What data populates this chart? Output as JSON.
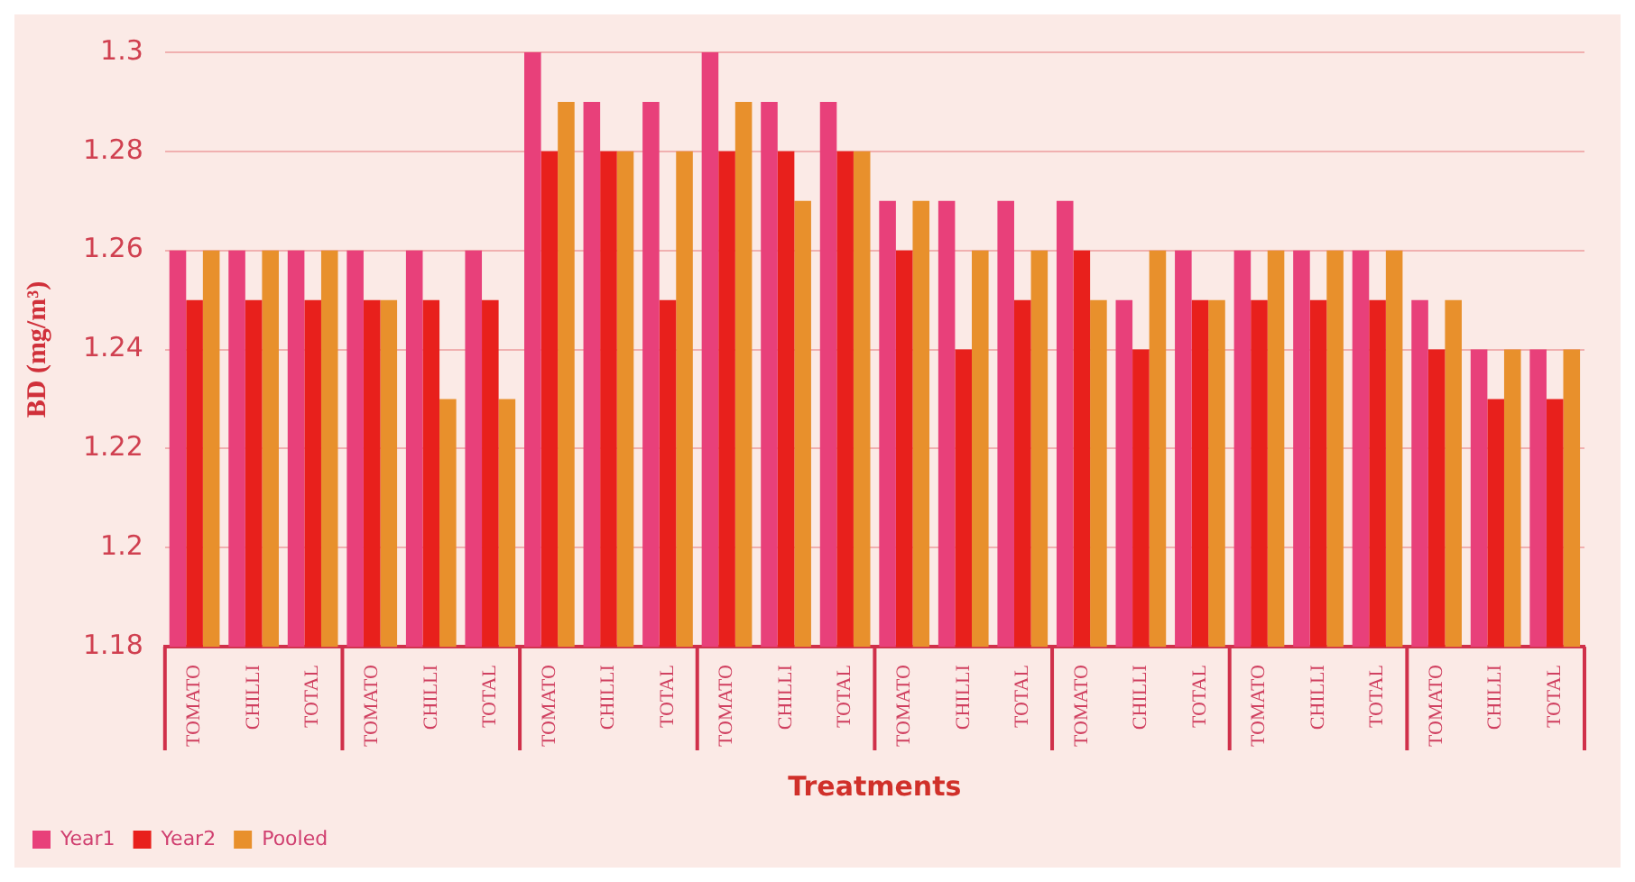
{
  "chart_data": {
    "type": "bar",
    "xlabel": "Treatments",
    "ylabel": "BD (mg/m³)",
    "categories": [
      "TOMATO",
      "CHILLI",
      "TOTAL",
      "TOMATO",
      "CHILLI",
      "TOTAL",
      "TOMATO",
      "CHILLI",
      "TOTAL",
      "TOMATO",
      "CHILLI",
      "TOTAL",
      "TOMATO",
      "CHILLI",
      "TOTAL",
      "TOMATO",
      "CHILLI",
      "TOTAL",
      "TOMATO",
      "CHILLI",
      "TOTAL",
      "TOMATO",
      "CHILLI",
      "TOTAL"
    ],
    "series": [
      {
        "name": "Year1",
        "color": "#e8407a",
        "values": [
          1.26,
          1.26,
          1.26,
          1.26,
          1.26,
          1.26,
          1.3,
          1.29,
          1.29,
          1.3,
          1.29,
          1.29,
          1.27,
          1.27,
          1.27,
          1.27,
          1.25,
          1.26,
          1.26,
          1.26,
          1.26,
          1.25,
          1.24,
          1.24
        ]
      },
      {
        "name": "Year2",
        "color": "#e8201c",
        "values": [
          1.25,
          1.25,
          1.25,
          1.25,
          1.25,
          1.25,
          1.28,
          1.28,
          1.25,
          1.28,
          1.28,
          1.28,
          1.26,
          1.24,
          1.25,
          1.26,
          1.24,
          1.25,
          1.25,
          1.25,
          1.25,
          1.24,
          1.23,
          1.23
        ]
      },
      {
        "name": "Pooled",
        "color": "#e8902c",
        "values": [
          1.26,
          1.26,
          1.26,
          1.25,
          1.23,
          1.23,
          1.29,
          1.28,
          1.28,
          1.29,
          1.27,
          1.28,
          1.27,
          1.26,
          1.26,
          1.25,
          1.26,
          1.25,
          1.26,
          1.26,
          1.26,
          1.25,
          1.24,
          1.24
        ]
      }
    ],
    "ylim": [
      1.18,
      1.3
    ],
    "yticks": [
      1.18,
      1.2,
      1.22,
      1.24,
      1.26,
      1.28,
      1.3
    ],
    "grid": "y",
    "legend": "bottom left"
  }
}
